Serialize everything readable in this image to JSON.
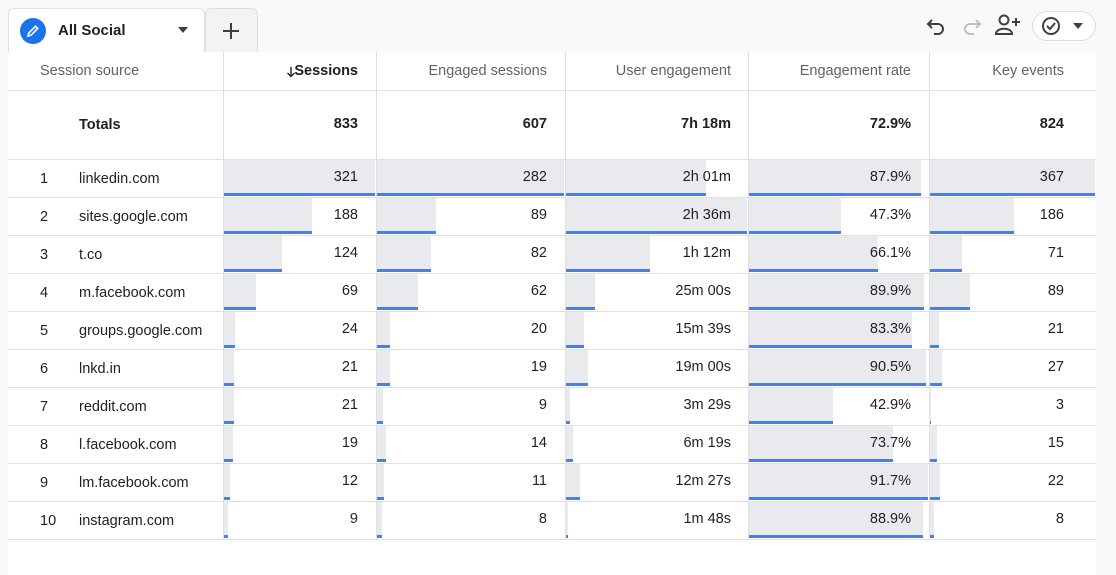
{
  "tab": {
    "label": "All Social"
  },
  "table": {
    "headers": [
      "Session source",
      "Sessions",
      "Engaged sessions",
      "User engagement",
      "Engagement rate",
      "Key events"
    ],
    "totals": {
      "label": "Totals",
      "cells": [
        "833",
        "607",
        "7h 18m",
        "72.9%",
        "824"
      ]
    },
    "rows": [
      {
        "rank": "1",
        "source": "linkedin.com",
        "cells": [
          "321",
          "282",
          "2h 01m",
          "87.9%",
          "367"
        ]
      },
      {
        "rank": "2",
        "source": "sites.google.com",
        "cells": [
          "188",
          "89",
          "2h 36m",
          "47.3%",
          "186"
        ]
      },
      {
        "rank": "3",
        "source": "t.co",
        "cells": [
          "124",
          "82",
          "1h 12m",
          "66.1%",
          "71"
        ]
      },
      {
        "rank": "4",
        "source": "m.facebook.com",
        "cells": [
          "69",
          "62",
          "25m 00s",
          "89.9%",
          "89"
        ]
      },
      {
        "rank": "5",
        "source": "groups.google.com",
        "cells": [
          "24",
          "20",
          "15m 39s",
          "83.3%",
          "21"
        ]
      },
      {
        "rank": "6",
        "source": "lnkd.in",
        "cells": [
          "21",
          "19",
          "19m 00s",
          "90.5%",
          "27"
        ]
      },
      {
        "rank": "7",
        "source": "reddit.com",
        "cells": [
          "21",
          "9",
          "3m 29s",
          "42.9%",
          "3"
        ]
      },
      {
        "rank": "8",
        "source": "l.facebook.com",
        "cells": [
          "19",
          "14",
          "6m 19s",
          "73.7%",
          "15"
        ]
      },
      {
        "rank": "9",
        "source": "lm.facebook.com",
        "cells": [
          "12",
          "11",
          "12m 27s",
          "91.7%",
          "22"
        ]
      },
      {
        "rank": "10",
        "source": "instagram.com",
        "cells": [
          "9",
          "8",
          "1m 48s",
          "88.9%",
          "8"
        ]
      }
    ]
  }
}
